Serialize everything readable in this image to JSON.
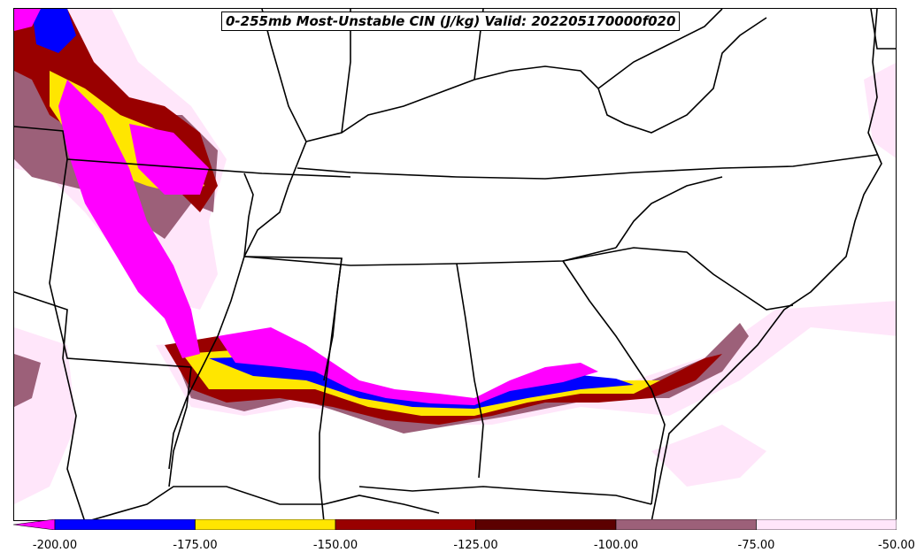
{
  "title": "0-255mb Most-Unstable CIN (J/kg) Valid: 202205170000f020",
  "colorbar": {
    "extend": "min",
    "bins": [
      {
        "from": -225,
        "to": -200,
        "color": "#ff00ff"
      },
      {
        "from": -200,
        "to": -175,
        "color": "#0000ff"
      },
      {
        "from": -175,
        "to": -150,
        "color": "#ffe600"
      },
      {
        "from": -150,
        "to": -125,
        "color": "#990000"
      },
      {
        "from": -125,
        "to": -100,
        "color": "#5c0000"
      },
      {
        "from": -100,
        "to": -75,
        "color": "#9c6079"
      },
      {
        "from": -75,
        "to": -50,
        "color": "#ffe6fa"
      }
    ],
    "ticks": [
      "-200.00",
      "-175.00",
      "-150.00",
      "-125.00",
      "-100.00",
      "-75.00",
      "-50.00"
    ]
  },
  "map": {
    "region": "Southeastern United States",
    "field": "Most-Unstable CIN",
    "units": "J/kg",
    "layer": "0-255mb"
  }
}
